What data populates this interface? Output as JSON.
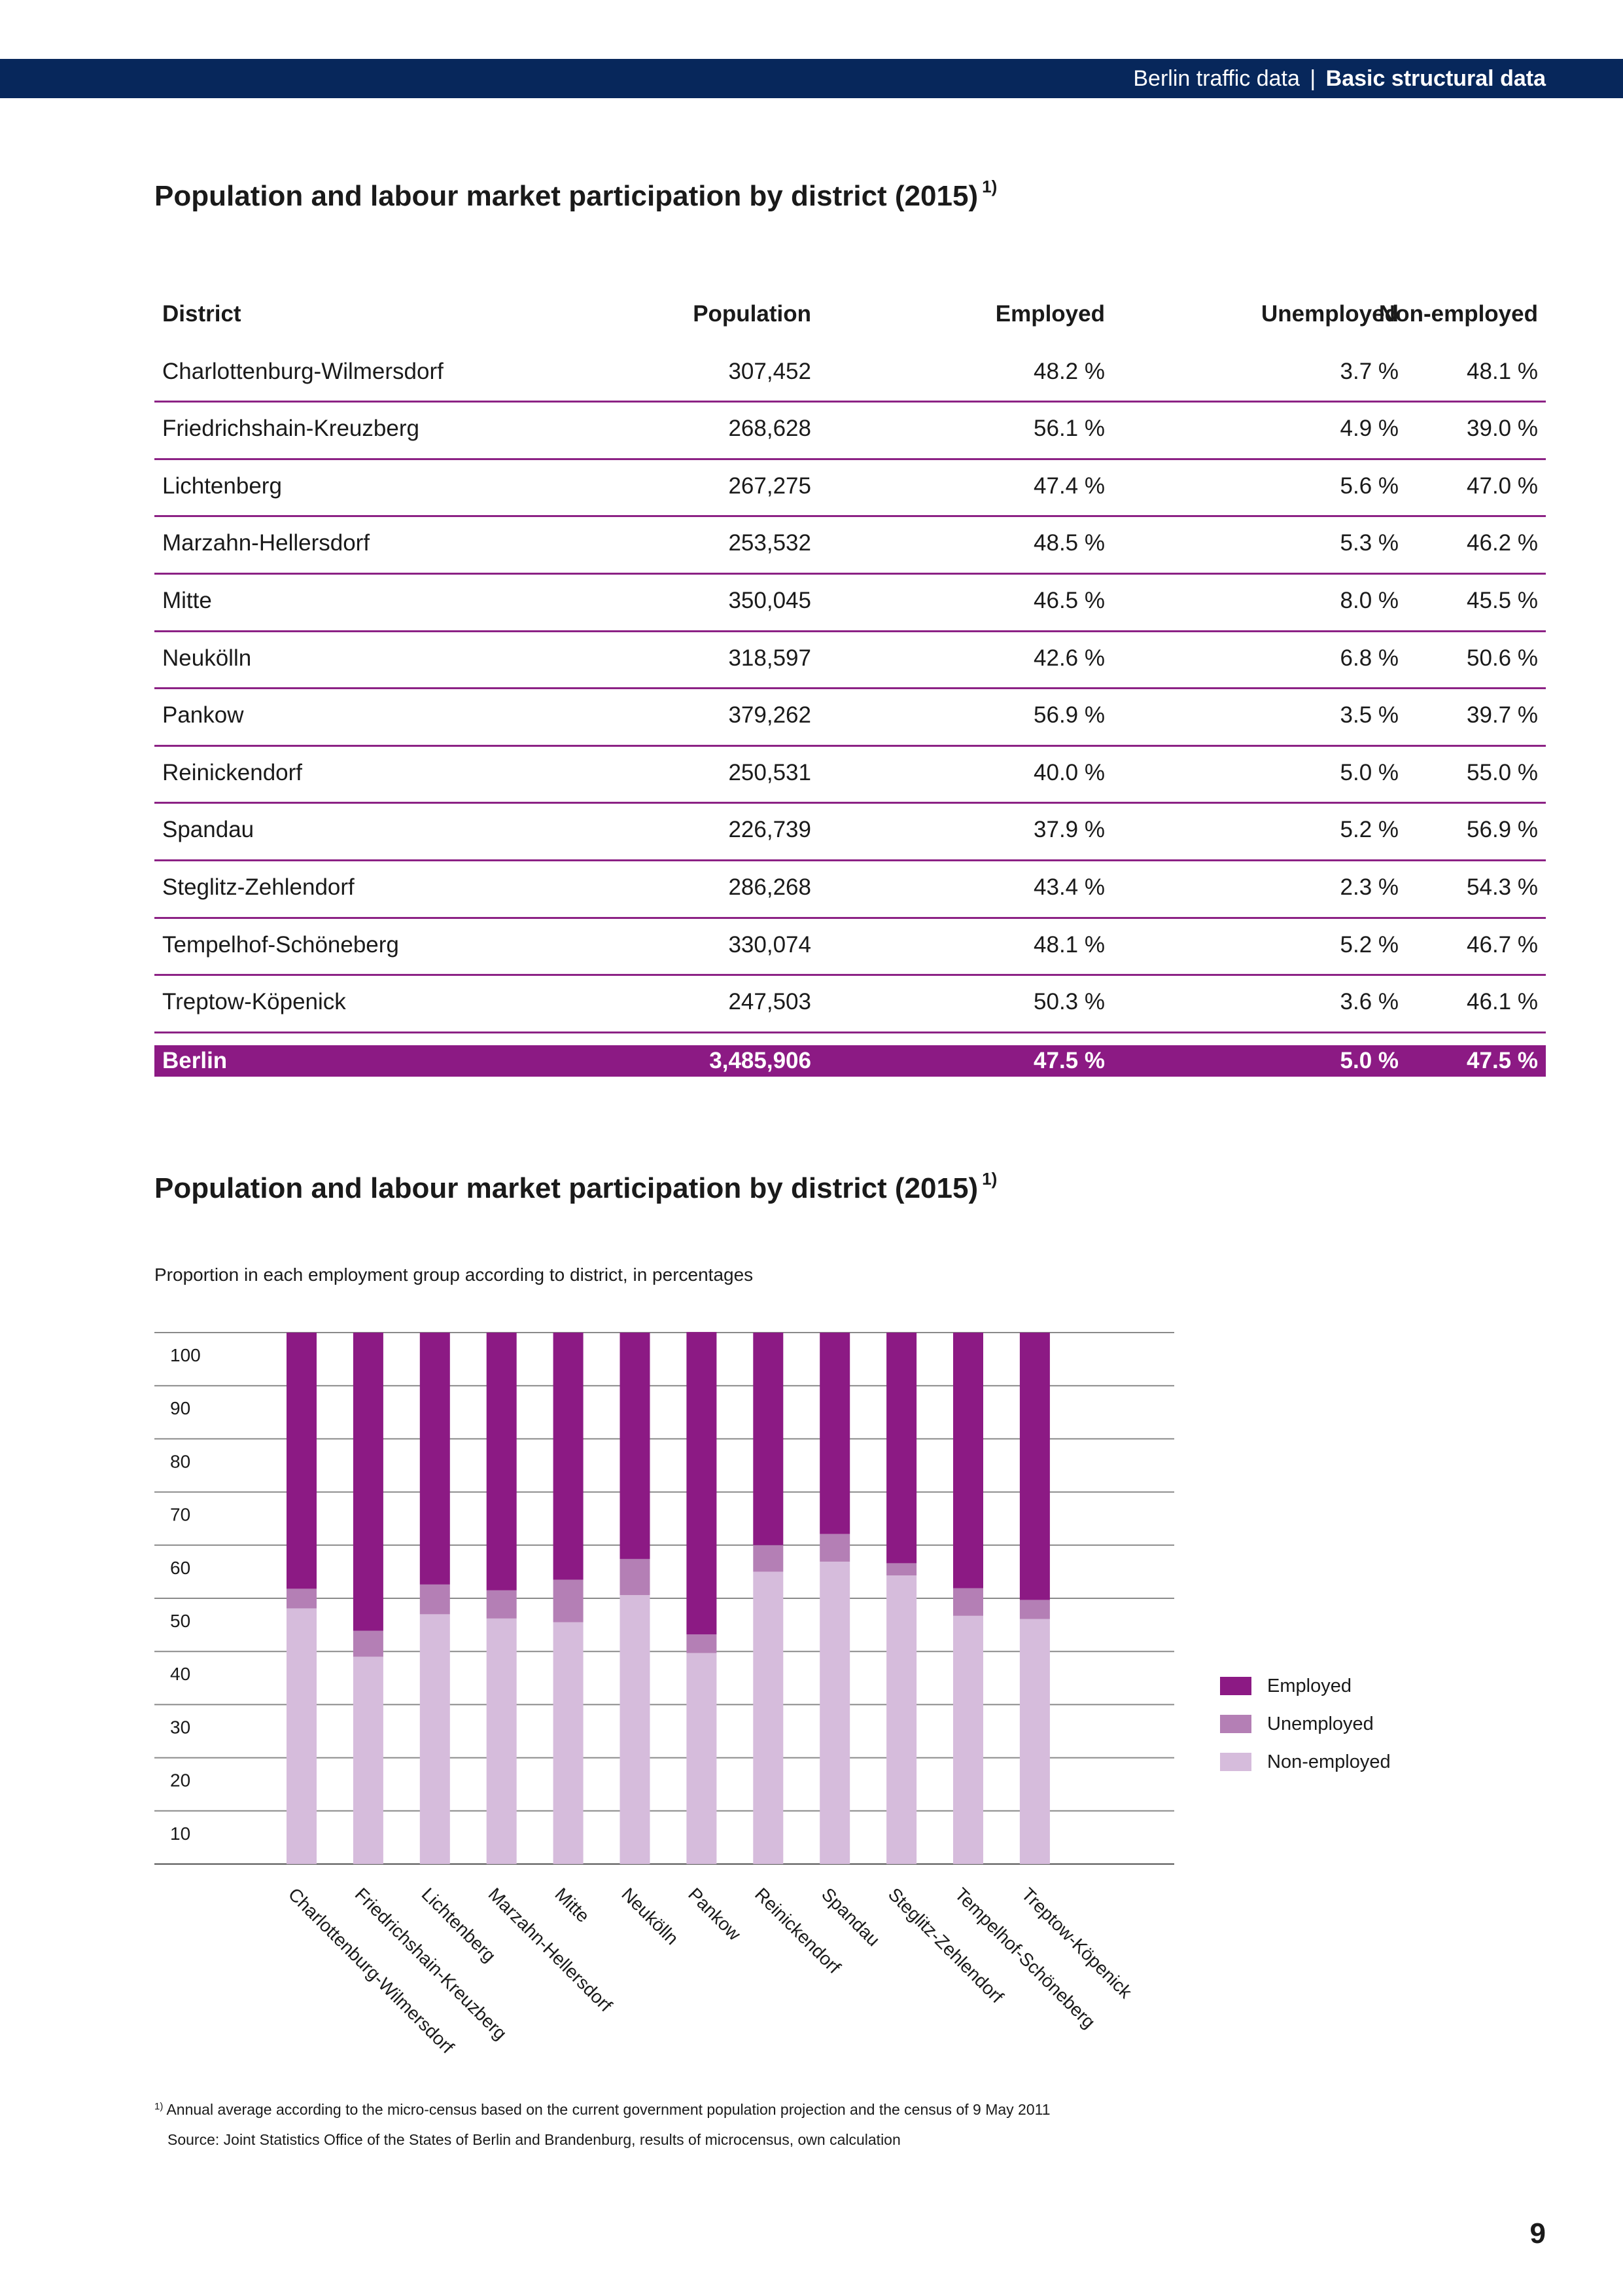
{
  "header": {
    "section": "Berlin traffic data",
    "separator": "|",
    "chapter": "Basic structural data"
  },
  "table_section": {
    "title": "Population and labour market participation by district (2015)",
    "footnote_marker": "1)",
    "columns": [
      "District",
      "Population",
      "Employed",
      "Unemployed",
      "Non-employed"
    ],
    "rows": [
      [
        "Charlottenburg-Wilmersdorf",
        "307,452",
        "48.2 %",
        "3.7 %",
        "48.1 %"
      ],
      [
        "Friedrichshain-Kreuzberg",
        "268,628",
        "56.1 %",
        "4.9 %",
        "39.0 %"
      ],
      [
        "Lichtenberg",
        "267,275",
        "47.4 %",
        "5.6 %",
        "47.0 %"
      ],
      [
        "Marzahn-Hellersdorf",
        "253,532",
        "48.5 %",
        "5.3 %",
        "46.2 %"
      ],
      [
        "Mitte",
        "350,045",
        "46.5 %",
        "8.0 %",
        "45.5 %"
      ],
      [
        "Neukölln",
        "318,597",
        "42.6 %",
        "6.8 %",
        "50.6 %"
      ],
      [
        "Pankow",
        "379,262",
        "56.9 %",
        "3.5 %",
        "39.7 %"
      ],
      [
        "Reinickendorf",
        "250,531",
        "40.0 %",
        "5.0 %",
        "55.0 %"
      ],
      [
        "Spandau",
        "226,739",
        "37.9 %",
        "5.2 %",
        "56.9 %"
      ],
      [
        "Steglitz-Zehlendorf",
        "286,268",
        "43.4 %",
        "2.3 %",
        "54.3 %"
      ],
      [
        "Tempelhof-Schöneberg",
        "330,074",
        "48.1 %",
        "5.2 %",
        "46.7 %"
      ],
      [
        "Treptow-Köpenick",
        "247,503",
        "50.3 %",
        "3.6 %",
        "46.1 %"
      ]
    ],
    "total": [
      "Berlin",
      "3,485,906",
      "47.5 %",
      "5.0 %",
      "47.5 %"
    ]
  },
  "chart_section": {
    "title": "Population and labour market participation by district (2015)",
    "footnote_marker": "1)",
    "subtitle": "Proportion in each employment group according to district, in percentages"
  },
  "chart_data": {
    "type": "bar",
    "stacked": true,
    "categories": [
      "Charlottenburg-Wilmersdorf",
      "Friedrichshain-Kreuzberg",
      "Lichtenberg",
      "Marzahn-Hellersdorf",
      "Mitte",
      "Neukölln",
      "Pankow",
      "Reinickendorf",
      "Spandau",
      "Steglitz-Zehlendorf",
      "Tempelhof-Schöneberg",
      "Treptow-Köpenick"
    ],
    "series": [
      {
        "name": "Non-employed",
        "color": "#d6bcdc",
        "values": [
          48.1,
          39.0,
          47.0,
          46.2,
          45.5,
          50.6,
          39.7,
          55.0,
          56.9,
          54.3,
          46.7,
          46.1
        ]
      },
      {
        "name": "Unemployed",
        "color": "#b47fb5",
        "values": [
          3.7,
          4.9,
          5.6,
          5.3,
          8.0,
          6.8,
          3.5,
          5.0,
          5.2,
          2.3,
          5.2,
          3.6
        ]
      },
      {
        "name": "Employed",
        "color": "#8c1a84",
        "values": [
          48.2,
          56.1,
          47.4,
          48.5,
          46.5,
          42.6,
          56.9,
          40.0,
          37.9,
          43.4,
          48.1,
          50.3
        ]
      }
    ],
    "yticks": [
      10,
      20,
      30,
      40,
      50,
      60,
      70,
      80,
      90,
      100
    ],
    "ylim": [
      0,
      100
    ],
    "grid": true,
    "legend_position": "right",
    "legend": [
      {
        "name": "Employed",
        "color": "#8c1a84"
      },
      {
        "name": "Unemployed",
        "color": "#b47fb5"
      },
      {
        "name": "Non-employed",
        "color": "#d6bcdc"
      }
    ]
  },
  "footnotes": {
    "marker": "1)",
    "note": "Annual average according to the micro-census based on the current government population projection and the census of 9 May 2011",
    "source": "Source: Joint Statistics Office of the States of Berlin and Brandenburg, results of microcensus, own calculation"
  },
  "page_number": "9"
}
